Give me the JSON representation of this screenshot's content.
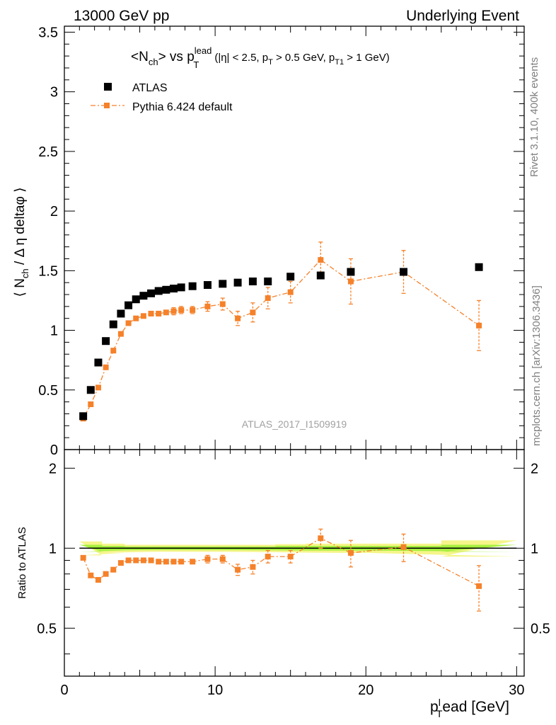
{
  "header": {
    "left": "13000 GeV pp",
    "right": "Underlying Event"
  },
  "side_labels": {
    "rivet": "Rivet 3.1.10,  400k events",
    "mcplots": "mcplots.cern.ch [arXiv:1306.3436]"
  },
  "chart_data": [
    {
      "type": "scatter",
      "title": "<N_ch> vs p_T^lead (|η| < 2.5, p_T > 0.5 GeV, p_T1 > 1 GeV)",
      "title_parts": {
        "main": "<N",
        "sub1": "ch",
        "mid": "> vs p",
        "sup": "lead",
        "sub2": "T",
        "cut_a": "(|η| < 2.5, p",
        "cut_a_sub": "T",
        "cut_b": " > 0.5 GeV, p",
        "cut_b_sub": "T1",
        "cut_c": " > 1 GeV)"
      },
      "ylabel": "⟨ N_ch / Δ η deltaφ ⟩",
      "ylabel_parts": {
        "pre": "⟨ N",
        "sub": "ch",
        "post": " / Δ η deltaφ ⟩"
      },
      "watermark": "ATLAS_2017_I1509919",
      "xlim": [
        0,
        30.5
      ],
      "ylim": [
        0,
        3.55
      ],
      "yticks": [
        0,
        0.5,
        1,
        1.5,
        2,
        2.5,
        3,
        3.5
      ],
      "ytick_labels": [
        "0",
        "0.5",
        "1",
        "1.5",
        "2",
        "2.5",
        "3",
        "3.5"
      ],
      "legend_position": "top-left",
      "series": [
        {
          "name": "ATLAS",
          "color": "#000000",
          "marker": "square",
          "x": [
            1.25,
            1.75,
            2.25,
            2.75,
            3.25,
            3.75,
            4.25,
            4.75,
            5.25,
            5.75,
            6.25,
            6.75,
            7.25,
            7.75,
            8.5,
            9.5,
            10.5,
            11.5,
            12.5,
            13.5,
            15.0,
            17.0,
            19.0,
            22.5,
            27.5
          ],
          "y": [
            0.28,
            0.5,
            0.73,
            0.91,
            1.05,
            1.14,
            1.21,
            1.26,
            1.29,
            1.31,
            1.33,
            1.34,
            1.35,
            1.36,
            1.37,
            1.38,
            1.39,
            1.4,
            1.41,
            1.41,
            1.45,
            1.46,
            1.49,
            1.49,
            1.53
          ]
        },
        {
          "name": "Pythia 6.424 default",
          "color": "#f5812a",
          "marker": "square",
          "line": "dash-dot",
          "x": [
            1.25,
            1.75,
            2.25,
            2.75,
            3.25,
            3.75,
            4.25,
            4.75,
            5.25,
            5.75,
            6.25,
            6.75,
            7.25,
            7.75,
            8.5,
            9.5,
            10.5,
            11.5,
            12.5,
            13.5,
            15.0,
            17.0,
            19.0,
            22.5,
            27.5
          ],
          "y": [
            0.26,
            0.38,
            0.52,
            0.69,
            0.83,
            0.97,
            1.06,
            1.1,
            1.12,
            1.14,
            1.14,
            1.15,
            1.16,
            1.17,
            1.17,
            1.2,
            1.22,
            1.1,
            1.15,
            1.27,
            1.32,
            1.59,
            1.41,
            1.49,
            1.04
          ],
          "yerr": [
            0.01,
            0.01,
            0.01,
            0.01,
            0.01,
            0.01,
            0.01,
            0.01,
            0.02,
            0.02,
            0.02,
            0.02,
            0.03,
            0.03,
            0.03,
            0.04,
            0.05,
            0.06,
            0.08,
            0.09,
            0.09,
            0.15,
            0.19,
            0.18,
            0.21
          ]
        }
      ]
    },
    {
      "type": "scatter",
      "ylabel": "Ratio to ATLAS",
      "xlabel": "p_T^lead [GeV]",
      "xlabel_parts": {
        "main": "p",
        "sup": "l",
        "sub": "T",
        "post": "ead [GeV]"
      },
      "xlim": [
        0,
        30.5
      ],
      "ylim": [
        0.33,
        2.35
      ],
      "xticks": [
        0,
        10,
        20,
        30
      ],
      "xtick_labels": [
        "0",
        "10",
        "20",
        "30"
      ],
      "yticks": [
        0.5,
        1,
        2
      ],
      "ytick_labels": [
        "0.5",
        "1",
        "2"
      ],
      "reference": 1.0,
      "band": {
        "x": [
          1.0,
          2.5,
          4.0,
          6.0,
          8.0,
          10.0,
          14.0,
          16.0,
          18.0,
          20.0,
          25.0,
          30.0
        ],
        "inner": [
          0.03,
          0.02,
          0.015,
          0.015,
          0.015,
          0.015,
          0.02,
          0.02,
          0.02,
          0.02,
          0.03,
          0.03
        ],
        "outer": [
          0.06,
          0.04,
          0.03,
          0.03,
          0.03,
          0.03,
          0.035,
          0.04,
          0.04,
          0.04,
          0.07,
          0.07
        ],
        "inner_color": "#a6f03e",
        "outer_color": "#f5f58a"
      },
      "series": [
        {
          "name": "Pythia 6.424 default",
          "color": "#f5812a",
          "line": "dash-dot",
          "x": [
            1.25,
            1.75,
            2.25,
            2.75,
            3.25,
            3.75,
            4.25,
            4.75,
            5.25,
            5.75,
            6.25,
            6.75,
            7.25,
            7.75,
            8.5,
            9.5,
            10.5,
            11.5,
            12.5,
            13.5,
            15.0,
            17.0,
            19.0,
            22.5,
            27.5
          ],
          "y": [
            0.92,
            0.79,
            0.76,
            0.8,
            0.83,
            0.88,
            0.9,
            0.9,
            0.9,
            0.9,
            0.89,
            0.89,
            0.89,
            0.89,
            0.89,
            0.91,
            0.91,
            0.83,
            0.85,
            0.93,
            0.93,
            1.09,
            0.96,
            1.01,
            0.72
          ],
          "yerr": [
            0.01,
            0.01,
            0.01,
            0.01,
            0.01,
            0.01,
            0.01,
            0.01,
            0.01,
            0.01,
            0.01,
            0.01,
            0.02,
            0.02,
            0.02,
            0.03,
            0.03,
            0.04,
            0.05,
            0.05,
            0.05,
            0.09,
            0.11,
            0.12,
            0.14
          ]
        }
      ]
    }
  ]
}
